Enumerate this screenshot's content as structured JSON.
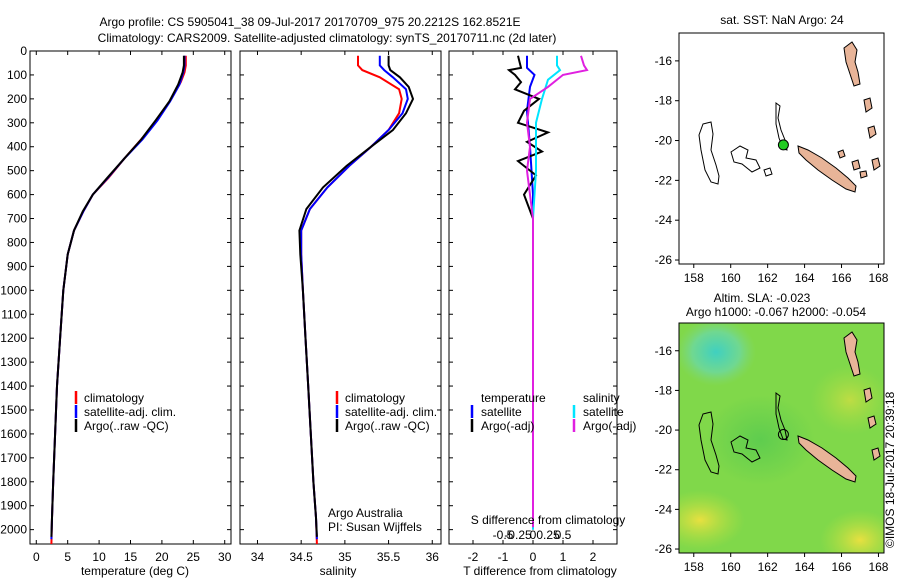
{
  "header": {
    "line1": "Argo profile: CS 5905041_38 09-Jul-2017 20170709_975 20.2212S 162.8521E",
    "line2": "Climatology: CARS2009. Satellite-adjusted climatology: synTS_20170711.nc (2d later)"
  },
  "colors": {
    "climatology": "#ff0000",
    "satellite_adj": "#0000ff",
    "argo": "#000000",
    "sat_s": "#00e5ff",
    "argo_s_diff": "#e020e0",
    "land": "#e8b498"
  },
  "chart_data": [
    {
      "type": "line",
      "name": "temperature-profile",
      "xlabel": "temperature (deg C)",
      "ylabel": "",
      "xlim": [
        -1,
        31
      ],
      "ylim": [
        2060,
        0
      ],
      "xticks": [
        0,
        5,
        10,
        15,
        20,
        25,
        30
      ],
      "yticks": [
        0,
        100,
        200,
        300,
        400,
        500,
        600,
        700,
        800,
        900,
        1000,
        1100,
        1200,
        1300,
        1400,
        1500,
        1600,
        1700,
        1800,
        1900,
        2000
      ],
      "legend": {
        "position": "lower-right",
        "entries": [
          "climatology",
          "satellite-adj. clim.",
          "Argo(..raw -QC)"
        ]
      },
      "series": [
        {
          "name": "climatology",
          "color": "#ff0000",
          "points": [
            [
              23.8,
              20
            ],
            [
              23.8,
              60
            ],
            [
              23.6,
              90
            ],
            [
              23.0,
              130
            ],
            [
              21.5,
              200
            ],
            [
              19.5,
              280
            ],
            [
              17.0,
              360
            ],
            [
              14.0,
              450
            ],
            [
              11.5,
              530
            ],
            [
              9.0,
              600
            ],
            [
              7.5,
              670
            ],
            [
              6.0,
              750
            ],
            [
              5.0,
              850
            ],
            [
              4.3,
              1000
            ],
            [
              3.8,
              1200
            ],
            [
              3.3,
              1400
            ],
            [
              3.0,
              1600
            ],
            [
              2.7,
              1800
            ],
            [
              2.5,
              1950
            ],
            [
              2.4,
              2060
            ]
          ]
        },
        {
          "name": "satellite-adj. clim.",
          "color": "#0000ff",
          "points": [
            [
              23.6,
              20
            ],
            [
              23.6,
              60
            ],
            [
              23.4,
              90
            ],
            [
              22.8,
              140
            ],
            [
              21.3,
              210
            ],
            [
              19.3,
              290
            ],
            [
              16.9,
              370
            ],
            [
              14.0,
              450
            ],
            [
              11.4,
              530
            ],
            [
              9.0,
              600
            ],
            [
              7.5,
              670
            ],
            [
              6.0,
              750
            ],
            [
              5.0,
              850
            ],
            [
              4.3,
              1000
            ],
            [
              3.8,
              1200
            ],
            [
              3.3,
              1400
            ],
            [
              3.0,
              1600
            ],
            [
              2.7,
              1800
            ],
            [
              2.5,
              1950
            ],
            [
              2.4,
              2040
            ]
          ]
        },
        {
          "name": "Argo(..raw -QC)",
          "color": "#000000",
          "points": [
            [
              23.5,
              20
            ],
            [
              23.5,
              60
            ],
            [
              23.3,
              90
            ],
            [
              22.6,
              140
            ],
            [
              21.2,
              210
            ],
            [
              19.0,
              290
            ],
            [
              16.7,
              370
            ],
            [
              14.0,
              450
            ],
            [
              11.3,
              530
            ],
            [
              9.0,
              600
            ],
            [
              7.4,
              670
            ],
            [
              6.0,
              750
            ],
            [
              5.0,
              850
            ],
            [
              4.3,
              1000
            ],
            [
              3.8,
              1200
            ],
            [
              3.3,
              1400
            ],
            [
              3.0,
              1600
            ],
            [
              2.7,
              1800
            ],
            [
              2.5,
              1950
            ],
            [
              2.4,
              2030
            ]
          ]
        }
      ]
    },
    {
      "type": "line",
      "name": "salinity-profile",
      "xlabel": "salinity",
      "xlim": [
        33.8,
        36.1
      ],
      "ylim": [
        2060,
        0
      ],
      "xticks": [
        34,
        34.5,
        35,
        35.5,
        36
      ],
      "legend": {
        "position": "lower-right",
        "entries": [
          "climatology",
          "satellite-adj. clim.",
          "Argo(..raw -QC)"
        ]
      },
      "annotation": [
        "Argo Australia",
        "PI: Susan Wijffels"
      ],
      "series": [
        {
          "name": "climatology",
          "color": "#ff0000",
          "points": [
            [
              35.15,
              20
            ],
            [
              35.15,
              60
            ],
            [
              35.2,
              80
            ],
            [
              35.4,
              110
            ],
            [
              35.62,
              160
            ],
            [
              35.65,
              200
            ],
            [
              35.62,
              260
            ],
            [
              35.5,
              330
            ],
            [
              35.3,
              400
            ],
            [
              35.05,
              480
            ],
            [
              34.8,
              570
            ],
            [
              34.6,
              660
            ],
            [
              34.5,
              750
            ],
            [
              34.5,
              850
            ],
            [
              34.52,
              1000
            ],
            [
              34.55,
              1200
            ],
            [
              34.58,
              1400
            ],
            [
              34.61,
              1600
            ],
            [
              34.64,
              1800
            ],
            [
              34.67,
              1950
            ],
            [
              34.68,
              2060
            ]
          ]
        },
        {
          "name": "satellite-adj. clim.",
          "color": "#0000ff",
          "points": [
            [
              35.4,
              20
            ],
            [
              35.4,
              60
            ],
            [
              35.45,
              80
            ],
            [
              35.55,
              110
            ],
            [
              35.7,
              160
            ],
            [
              35.72,
              200
            ],
            [
              35.66,
              260
            ],
            [
              35.5,
              330
            ],
            [
              35.3,
              400
            ],
            [
              35.05,
              480
            ],
            [
              34.8,
              570
            ],
            [
              34.6,
              660
            ],
            [
              34.5,
              750
            ],
            [
              34.5,
              850
            ],
            [
              34.52,
              1000
            ],
            [
              34.55,
              1200
            ],
            [
              34.58,
              1400
            ],
            [
              34.61,
              1600
            ],
            [
              34.64,
              1800
            ],
            [
              34.67,
              1950
            ],
            [
              34.68,
              2040
            ]
          ]
        },
        {
          "name": "Argo(..raw -QC)",
          "color": "#000000",
          "points": [
            [
              35.5,
              20
            ],
            [
              35.5,
              60
            ],
            [
              35.52,
              80
            ],
            [
              35.63,
              110
            ],
            [
              35.73,
              150
            ],
            [
              35.78,
              200
            ],
            [
              35.7,
              260
            ],
            [
              35.55,
              330
            ],
            [
              35.3,
              400
            ],
            [
              35.02,
              480
            ],
            [
              34.75,
              570
            ],
            [
              34.56,
              660
            ],
            [
              34.48,
              750
            ],
            [
              34.49,
              850
            ],
            [
              34.52,
              1000
            ],
            [
              34.55,
              1200
            ],
            [
              34.58,
              1400
            ],
            [
              34.61,
              1600
            ],
            [
              34.64,
              1800
            ],
            [
              34.67,
              1950
            ],
            [
              34.68,
              2030
            ]
          ]
        }
      ]
    },
    {
      "type": "line",
      "name": "difference-profile",
      "xlabel": "T difference from climatology",
      "xlabel_top": "S difference from climatology",
      "xlim": [
        -2.8,
        2.8
      ],
      "ylim": [
        2060,
        0
      ],
      "xticks": [
        -2,
        -1,
        0,
        1,
        2
      ],
      "s_ticks": [
        {
          "label": "-0.5",
          "value": -1.0
        },
        {
          "label": "-0.25",
          "value": -0.5
        },
        {
          "label": "0",
          "value": 0
        },
        {
          "label": "0.25",
          "value": 0.5
        },
        {
          "label": "0.5",
          "value": 1.0
        }
      ],
      "legend": {
        "position": "lower-center",
        "temperature_heading": "temperature",
        "salinity_heading": "salinity",
        "entries": [
          "satellite",
          "Argo(-adj)",
          "satellite",
          "Argo(-adj)"
        ]
      },
      "series": [
        {
          "name": "satellite",
          "group": "temperature",
          "color": "#0000ff",
          "points": [
            [
              -0.2,
              20
            ],
            [
              -0.2,
              70
            ],
            [
              0.05,
              100
            ],
            [
              -0.1,
              150
            ],
            [
              -0.2,
              250
            ],
            [
              -0.1,
              400
            ],
            [
              0,
              600
            ],
            [
              0,
              900
            ],
            [
              0,
              1200
            ],
            [
              0,
              1500
            ],
            [
              0,
              1800
            ],
            [
              0,
              2000
            ]
          ]
        },
        {
          "name": "Argo(-adj)",
          "group": "temperature",
          "color": "#000000",
          "points": [
            [
              -0.5,
              20
            ],
            [
              -0.4,
              70
            ],
            [
              -0.8,
              80
            ],
            [
              -0.6,
              100
            ],
            [
              -0.4,
              130
            ],
            [
              -0.6,
              160
            ],
            [
              0.2,
              200
            ],
            [
              -0.3,
              250
            ],
            [
              -0.5,
              300
            ],
            [
              0.5,
              340
            ],
            [
              -0.2,
              380
            ],
            [
              0.3,
              420
            ],
            [
              -0.5,
              460
            ],
            [
              0.1,
              520
            ],
            [
              -0.3,
              600
            ],
            [
              0.0,
              700
            ],
            [
              0.0,
              900
            ],
            [
              0.0,
              1200
            ],
            [
              0.0,
              1500
            ],
            [
              0.0,
              1800
            ],
            [
              0.0,
              1990
            ]
          ]
        },
        {
          "name": "satellite",
          "group": "salinity",
          "color": "#00e5ff",
          "points": [
            [
              0.8,
              20
            ],
            [
              0.8,
              60
            ],
            [
              0.9,
              80
            ],
            [
              0.5,
              120
            ],
            [
              0.3,
              200
            ],
            [
              0.1,
              300
            ],
            [
              0.1,
              500
            ],
            [
              0,
              700
            ],
            [
              0,
              900
            ],
            [
              0,
              1200
            ],
            [
              0,
              1500
            ],
            [
              0,
              1800
            ],
            [
              0,
              2000
            ]
          ]
        },
        {
          "name": "Argo(-adj)",
          "group": "salinity",
          "color": "#e020e0",
          "points": [
            [
              1.6,
              20
            ],
            [
              1.7,
              60
            ],
            [
              1.8,
              80
            ],
            [
              1.0,
              100
            ],
            [
              0.5,
              150
            ],
            [
              -0.1,
              200
            ],
            [
              -0.2,
              300
            ],
            [
              -0.1,
              400
            ],
            [
              -0.2,
              500
            ],
            [
              -0.1,
              600
            ],
            [
              0,
              700
            ],
            [
              0,
              900
            ],
            [
              0,
              1200
            ],
            [
              0,
              1500
            ],
            [
              0,
              1800
            ],
            [
              0,
              1990
            ]
          ]
        }
      ]
    },
    {
      "type": "map",
      "name": "sst-map",
      "title": "sat. SST: NaN Argo: 24",
      "xlim": [
        157.2,
        168.3
      ],
      "ylim": [
        -26.2,
        -14.6
      ],
      "xticks": [
        158,
        160,
        162,
        164,
        166,
        168
      ],
      "yticks": [
        -16,
        -18,
        -20,
        -22,
        -24,
        -26
      ],
      "argo_position": {
        "lon": 162.8521,
        "lat": -20.2212,
        "marker": "filled-green-circle"
      }
    },
    {
      "type": "heatmap",
      "name": "sla-map",
      "title_line1": "Altim. SLA: -0.023",
      "title_line2": "Argo h1000: -0.067 h2000: -0.054",
      "xlim": [
        157.2,
        168.3
      ],
      "ylim": [
        -26.2,
        -14.6
      ],
      "xticks": [
        158,
        160,
        162,
        164,
        166,
        168
      ],
      "yticks": [
        -16,
        -18,
        -20,
        -22,
        -24,
        -26
      ],
      "argo_position": {
        "lon": 162.8521,
        "lat": -20.2212,
        "marker": "open-circle"
      }
    }
  ],
  "credit": "©IMOS 18-Jul-2017 20:39:18"
}
